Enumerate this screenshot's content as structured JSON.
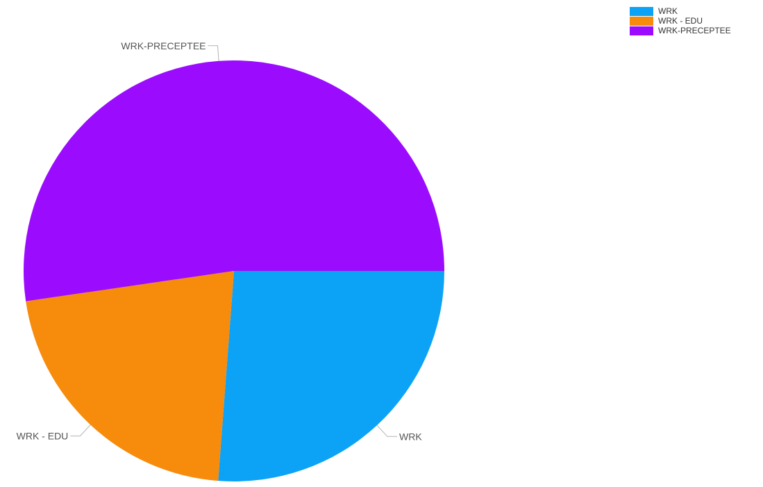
{
  "chart_data": {
    "type": "pie",
    "title": "",
    "start_angle_deg": 90,
    "direction": "clockwise",
    "legend_position": "top-right",
    "series": [
      {
        "name": "WRK",
        "value": 26.2,
        "color": "#0ca3f7"
      },
      {
        "name": "WRK - EDU",
        "value": 21.5,
        "color": "#f78b0c"
      },
      {
        "name": "WRK-PRECEPTEE",
        "value": 52.3,
        "color": "#9b0cff"
      }
    ]
  }
}
